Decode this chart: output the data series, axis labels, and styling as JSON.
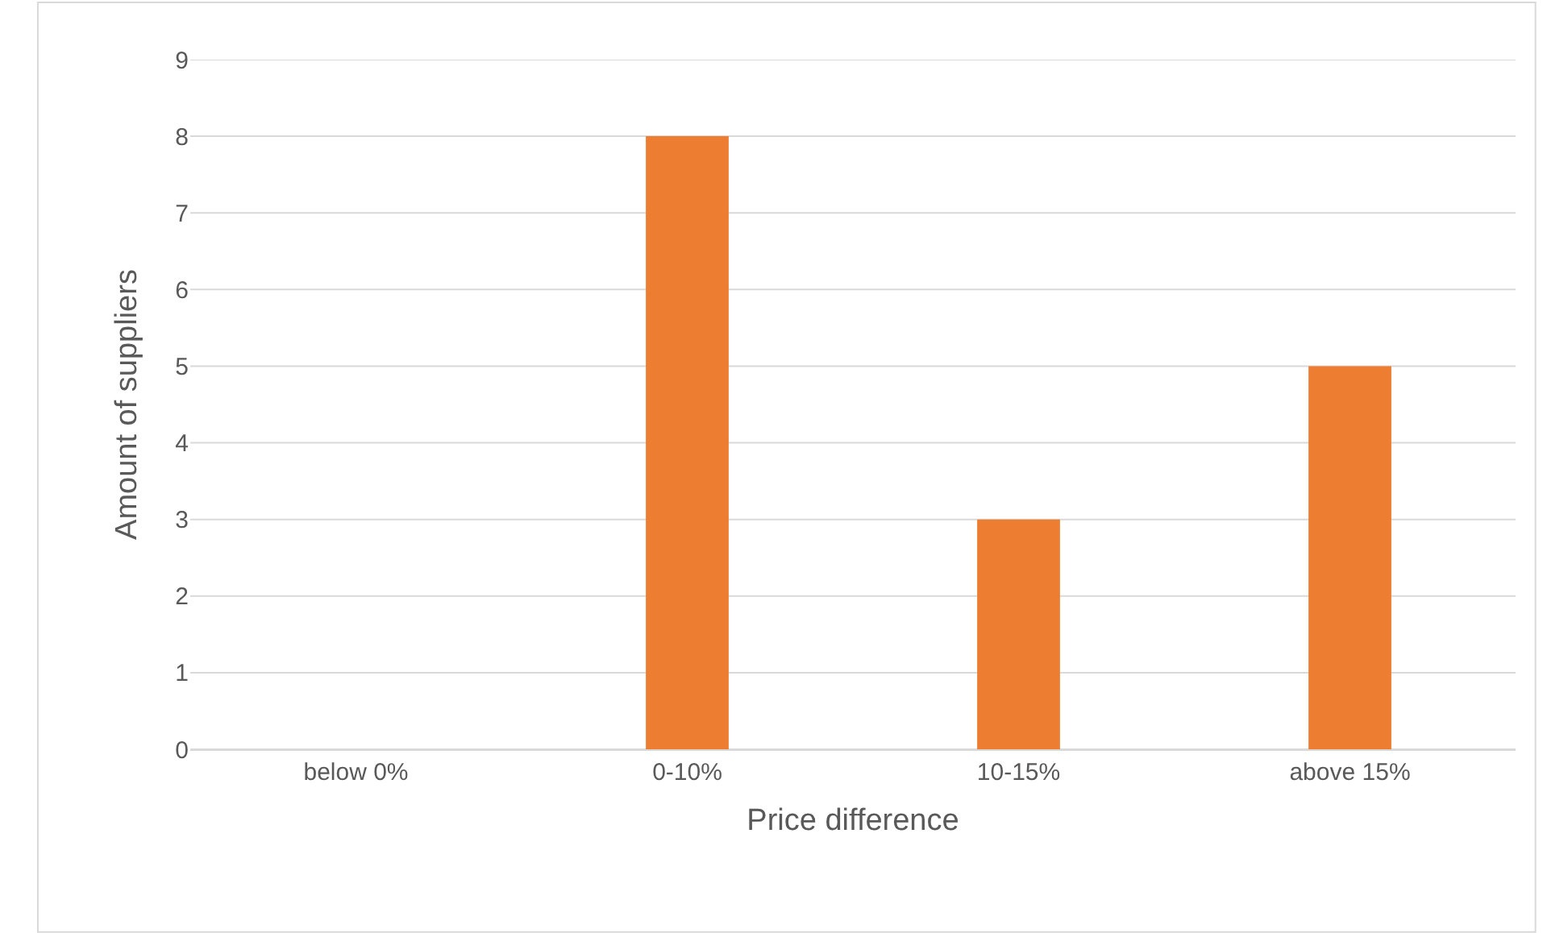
{
  "chart_data": {
    "type": "bar",
    "xlabel": "Price difference",
    "ylabel": "Amount of suppliers",
    "categories": [
      "below 0%",
      "0-10%",
      "10-15%",
      "above 15%"
    ],
    "values": [
      0,
      8,
      3,
      5
    ],
    "color": "#ed7d31",
    "ylim": [
      0,
      9
    ],
    "yticks": [
      0,
      1,
      2,
      3,
      4,
      5,
      6,
      7,
      8,
      9
    ],
    "grid": "y"
  }
}
